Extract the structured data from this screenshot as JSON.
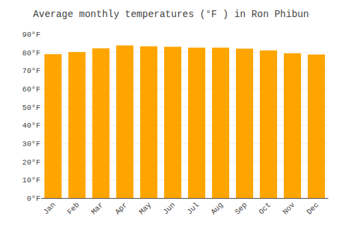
{
  "chart_data": {
    "type": "bar",
    "title": "Average monthly temperatures (°F ) in Ron Phibun",
    "categories": [
      "Jan",
      "Feb",
      "Mar",
      "Apr",
      "May",
      "Jun",
      "Jul",
      "Aug",
      "Sep",
      "Oct",
      "Nov",
      "Dec"
    ],
    "values": [
      79.0,
      80.2,
      82.2,
      83.8,
      83.3,
      83.1,
      82.6,
      82.6,
      82.0,
      81.1,
      79.5,
      78.8
    ],
    "color": "#FFA500",
    "ylim": [
      0,
      90
    ],
    "yticks": [
      {
        "value": 0,
        "label": "0°F"
      },
      {
        "value": 10,
        "label": "10°F"
      },
      {
        "value": 20,
        "label": "20°F"
      },
      {
        "value": 30,
        "label": "30°F"
      },
      {
        "value": 40,
        "label": "40°F"
      },
      {
        "value": 50,
        "label": "50°F"
      },
      {
        "value": 60,
        "label": "60°F"
      },
      {
        "value": 70,
        "label": "70°F"
      },
      {
        "value": 80,
        "label": "80°F"
      },
      {
        "value": 90,
        "label": "90°F"
      }
    ],
    "grid": true
  }
}
